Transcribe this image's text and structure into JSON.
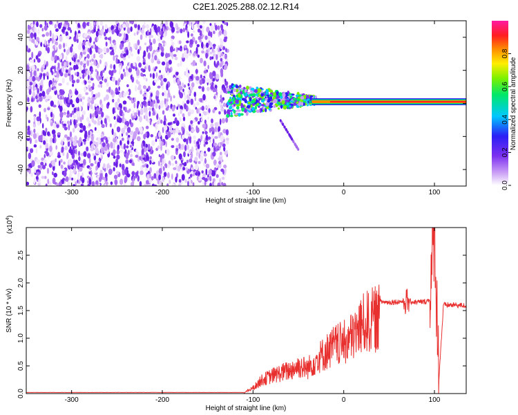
{
  "title": "C2E1.2025.288.02.12.R14",
  "colors": {
    "snr_line": "#e8302f",
    "axis": "#000000",
    "background": "#ffffff"
  },
  "chart_data": [
    {
      "type": "heatmap",
      "name": "spectrogram",
      "xlabel": "Height of straight line (km)",
      "ylabel": "Frequency (Hz)",
      "xlim": [
        -350,
        135
      ],
      "ylim": [
        -50,
        50
      ],
      "xticks": [
        -300,
        -200,
        -100,
        0,
        100
      ],
      "xtick_labels": [
        "-300",
        "-200",
        "-100",
        "0",
        "100"
      ],
      "yticks": [
        -40,
        -20,
        0,
        20,
        40
      ],
      "ytick_labels": [
        "-40",
        "-20",
        "0",
        "20",
        "40"
      ],
      "colorbar": {
        "label": "Normalized spectral amplitude",
        "range": [
          0,
          1
        ],
        "ticks": [
          0,
          0.2,
          0.4,
          0.6,
          0.8
        ],
        "tick_labels": [
          "0.0",
          "0.2",
          "0.4",
          "0.6",
          "0.8"
        ],
        "colormap": "rainbow (white-violet-blue-cyan-green-yellow-red-magenta)"
      },
      "regions": [
        {
          "description": "broadband noise",
          "x": [
            -350,
            -128
          ],
          "y": [
            -50,
            50
          ],
          "amplitude": 0.1
        },
        {
          "description": "signal onset, spread",
          "x": [
            -128,
            -30
          ],
          "y": [
            -6,
            10
          ],
          "amplitude": 0.4
        },
        {
          "description": "descending trace",
          "x": [
            -70,
            -50
          ],
          "y": [
            -10,
            -28
          ],
          "amplitude": 0.1
        },
        {
          "description": "narrow carrier line",
          "x": [
            -35,
            135
          ],
          "y": [
            1,
            1
          ],
          "amplitude": 0.9
        }
      ]
    },
    {
      "type": "line",
      "name": "snr",
      "xlabel": "Height of straight line (km)",
      "ylabel": "SNR (10 * v/v)",
      "scale_label": "(x10",
      "scale_exp": "4",
      "xlim": [
        -350,
        135
      ],
      "ylim": [
        0,
        3.0
      ],
      "xticks": [
        -300,
        -200,
        -100,
        0,
        100
      ],
      "xtick_labels": [
        "-300",
        "-200",
        "-100",
        "0",
        "100"
      ],
      "yticks": [
        0,
        0.5,
        1.0,
        1.5,
        2.0,
        2.5
      ],
      "ytick_labels": [
        "0.0",
        "0.5",
        "1.0",
        "1.5",
        "2.0",
        "2.5"
      ],
      "series": [
        {
          "name": "SNR",
          "x": [
            -350,
            -110,
            -100,
            -90,
            -80,
            -70,
            -60,
            -50,
            -40,
            -30,
            -20,
            -10,
            0,
            10,
            20,
            30,
            40,
            50,
            60,
            70,
            80,
            90,
            95,
            100,
            105,
            110,
            120,
            135
          ],
          "y": [
            0.02,
            0.02,
            0.12,
            0.3,
            0.38,
            0.45,
            0.5,
            0.6,
            0.55,
            0.75,
            0.9,
            1.05,
            1.1,
            1.25,
            1.5,
            1.6,
            1.66,
            1.65,
            1.66,
            1.67,
            1.65,
            1.66,
            1.7,
            2.95,
            0.3,
            1.6,
            1.6,
            1.59
          ]
        }
      ]
    }
  ]
}
